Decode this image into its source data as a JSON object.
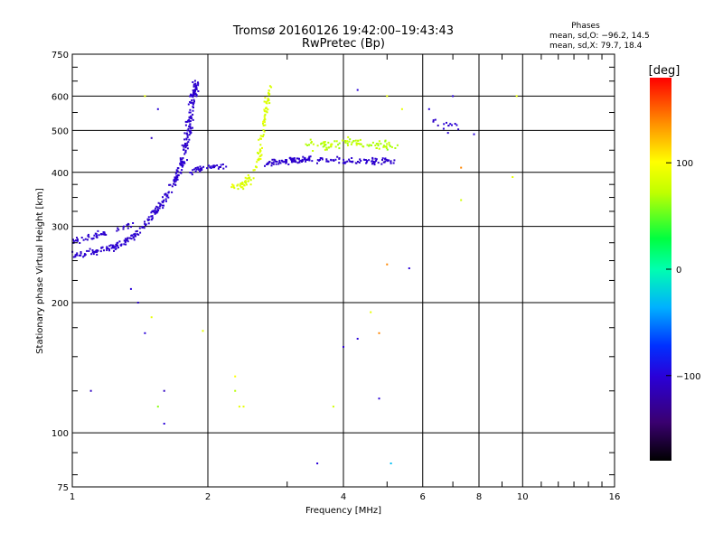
{
  "header": {
    "title_line1": "Tromsø 20160126 19:42:00–19:43:43",
    "title_line2": "RwPretec (Bp)",
    "phases_title": "Phases",
    "phases_line_o": "mean, sd,O: −96.2, 14.5",
    "phases_line_x": "mean, sd,X:  79.7, 18.4"
  },
  "colorbar": {
    "unit_label": "[deg]",
    "ticks": [
      {
        "value": 100,
        "label": "100"
      },
      {
        "value": 0,
        "label": "0"
      },
      {
        "value": -100,
        "label": "−100"
      }
    ],
    "range": [
      -180,
      180
    ]
  },
  "chart_data": {
    "type": "scatter",
    "title": "Tromsø 20160126 19:42:00–19:43:43",
    "subtitle": "RwPretec (Bp)",
    "xlabel": "Frequency [MHz]",
    "ylabel": "Stationary phase Virtual Height [km]",
    "x_scale": "log",
    "y_scale": "log",
    "xlim": [
      1,
      16
    ],
    "ylim": [
      75,
      750
    ],
    "grid": true,
    "x_major_ticks": [
      {
        "value": 1,
        "label": "1"
      },
      {
        "value": 2,
        "label": "2"
      },
      {
        "value": 4,
        "label": "4"
      },
      {
        "value": 6,
        "label": "6"
      },
      {
        "value": 8,
        "label": "8"
      },
      {
        "value": 10,
        "label": "10"
      },
      {
        "value": 16,
        "label": "16"
      }
    ],
    "x_minor_ticks": [
      3,
      5,
      7,
      9,
      11,
      12,
      13,
      14,
      15
    ],
    "y_major_ticks": [
      {
        "value": 75,
        "label": "75"
      },
      {
        "value": 100,
        "label": "100"
      },
      {
        "value": 200,
        "label": "200"
      },
      {
        "value": 300,
        "label": "300"
      },
      {
        "value": 400,
        "label": "400"
      },
      {
        "value": 500,
        "label": "500"
      },
      {
        "value": 600,
        "label": "600"
      },
      {
        "value": 750,
        "label": "750"
      }
    ],
    "y_minor_ticks": [
      80,
      90,
      125,
      150,
      175,
      225,
      250,
      275,
      325,
      350,
      375,
      450,
      550,
      650,
      700
    ],
    "color_meaning": "phase [deg]",
    "point_groups": [
      {
        "trace": [
          [
            1.0,
            258
          ],
          [
            1.1,
            262
          ],
          [
            1.2,
            266
          ],
          [
            1.3,
            275
          ],
          [
            1.4,
            290
          ],
          [
            1.5,
            315
          ],
          [
            1.6,
            345
          ],
          [
            1.7,
            385
          ],
          [
            1.75,
            420
          ],
          [
            1.8,
            470
          ],
          [
            1.83,
            530
          ],
          [
            1.86,
            600
          ],
          [
            1.88,
            650
          ]
        ],
        "count": 340,
        "xspread": 0.025,
        "yspread": 0.028,
        "phase": -105,
        "phase_sd": 8
      },
      {
        "trace": [
          [
            1.0,
            278
          ],
          [
            1.1,
            284
          ],
          [
            1.2,
            292
          ],
          [
            1.35,
            300
          ]
        ],
        "count": 50,
        "xspread": 0.03,
        "yspread": 0.03,
        "phase": -105,
        "phase_sd": 8
      },
      {
        "trace": [
          [
            1.85,
            400
          ],
          [
            1.95,
            410
          ],
          [
            2.2,
            415
          ]
        ],
        "count": 40,
        "xspread": 0.03,
        "yspread": 0.02,
        "phase": -105,
        "phase_sd": 10
      },
      {
        "trace": [
          [
            2.25,
            370
          ],
          [
            2.4,
            372
          ],
          [
            2.5,
            390
          ],
          [
            2.6,
            430
          ],
          [
            2.65,
            500
          ],
          [
            2.7,
            570
          ],
          [
            2.75,
            630
          ]
        ],
        "count": 110,
        "xspread": 0.018,
        "yspread": 0.03,
        "phase": 85,
        "phase_sd": 18
      },
      {
        "trace": [
          [
            2.7,
            420
          ],
          [
            3.0,
            425
          ],
          [
            3.4,
            430
          ],
          [
            4.0,
            425
          ],
          [
            4.6,
            425
          ],
          [
            5.2,
            425
          ]
        ],
        "count": 160,
        "xspread": 0.02,
        "yspread": 0.025,
        "phase": -105,
        "phase_sd": 8
      },
      {
        "trace": [
          [
            3.3,
            470
          ],
          [
            3.7,
            460
          ],
          [
            4.2,
            470
          ],
          [
            4.7,
            460
          ],
          [
            5.2,
            460
          ]
        ],
        "count": 90,
        "xspread": 0.05,
        "yspread": 0.04,
        "phase": 70,
        "phase_sd": 18
      },
      {
        "trace": [
          [
            6.2,
            530
          ],
          [
            6.8,
            510
          ],
          [
            7.3,
            505
          ]
        ],
        "count": 15,
        "xspread": 0.03,
        "yspread": 0.04,
        "phase": -105,
        "phase_sd": 10
      }
    ],
    "scattered_points": [
      [
        1.1,
        125,
        -110
      ],
      [
        1.35,
        215,
        -100
      ],
      [
        1.4,
        200,
        -105
      ],
      [
        1.45,
        170,
        -100
      ],
      [
        1.5,
        185,
        90
      ],
      [
        1.55,
        115,
        60
      ],
      [
        1.6,
        125,
        -110
      ],
      [
        1.6,
        105,
        -100
      ],
      [
        1.95,
        172,
        90
      ],
      [
        2.3,
        135,
        100
      ],
      [
        2.3,
        125,
        70
      ],
      [
        2.35,
        115,
        90
      ],
      [
        2.4,
        115,
        90
      ],
      [
        3.5,
        85,
        -100
      ],
      [
        3.8,
        115,
        80
      ],
      [
        4.0,
        158,
        -105
      ],
      [
        4.3,
        165,
        -100
      ],
      [
        4.6,
        190,
        90
      ],
      [
        4.8,
        170,
        140
      ],
      [
        4.8,
        120,
        -100
      ],
      [
        5.0,
        245,
        140
      ],
      [
        5.1,
        85,
        -30
      ],
      [
        5.6,
        240,
        -100
      ],
      [
        7.3,
        345,
        80
      ],
      [
        9.5,
        390,
        90
      ],
      [
        9.7,
        600,
        90
      ],
      [
        7.0,
        600,
        -100
      ],
      [
        4.3,
        620,
        -100
      ],
      [
        5.0,
        600,
        90
      ],
      [
        1.45,
        600,
        90
      ],
      [
        1.55,
        560,
        -100
      ],
      [
        1.5,
        480,
        -110
      ],
      [
        6.2,
        560,
        -100
      ],
      [
        7.8,
        490,
        -100
      ],
      [
        7.3,
        410,
        140
      ],
      [
        5.4,
        560,
        90
      ]
    ]
  }
}
